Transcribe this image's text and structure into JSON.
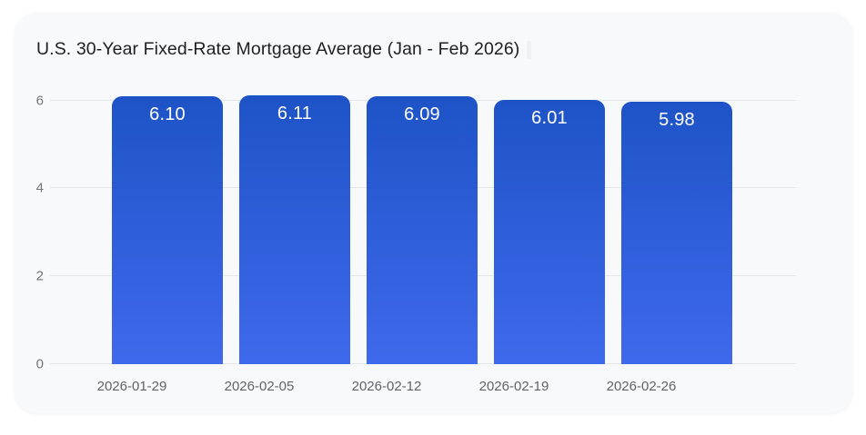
{
  "card": {
    "title": "U.S. 30-Year Fixed-Rate Mortgage Average (Jan - Feb 2026)"
  },
  "chart_data": {
    "type": "bar",
    "title": "U.S. 30-Year Fixed-Rate Mortgage Average (Jan - Feb 2026)",
    "categories": [
      "2026-01-29",
      "2026-02-05",
      "2026-02-12",
      "2026-02-19",
      "2026-02-26"
    ],
    "values": [
      6.1,
      6.11,
      6.09,
      6.01,
      5.98
    ],
    "value_labels": [
      "6.10",
      "6.11",
      "6.09",
      "6.01",
      "5.98"
    ],
    "xlabel": "",
    "ylabel": "",
    "yticks": [
      0,
      2,
      4,
      6
    ],
    "ylim": [
      0,
      6.2
    ],
    "grid": true,
    "legend": false,
    "bar_label_position": "inside-top"
  },
  "colors": {
    "page_bg": "#ffffff",
    "card_bg": "#f8f9fa",
    "gridline": "#e4e7ea",
    "ytick_text": "#717478",
    "xlabel_text": "#5f6368",
    "title_text": "#202124",
    "bar_gradient_top": "#1e53c7",
    "bar_gradient_bottom": "#3f69ec",
    "bar_value_text": "#ffffff"
  }
}
